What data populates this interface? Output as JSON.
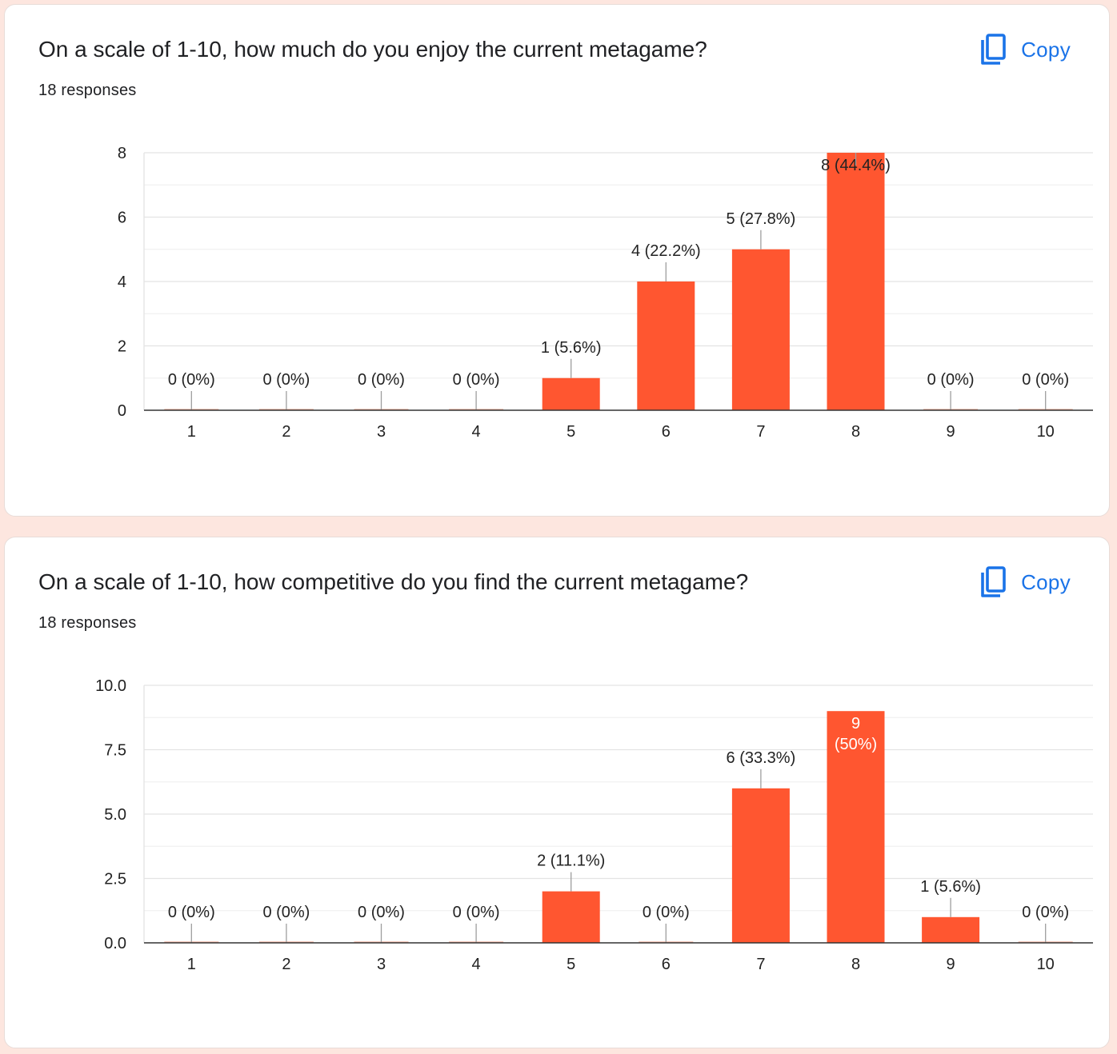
{
  "colors": {
    "bar": "#ff5630",
    "accent": "#1a73e8",
    "page_background": "#fde6df"
  },
  "copy_icon": "copy-icon",
  "cards": [
    {
      "question": "On a scale of 1-10, how much do you enjoy the current metagame?",
      "responses": "18 responses",
      "copy_label": "Copy"
    },
    {
      "question": "On a scale of 1-10, how competitive do you find the current metagame?",
      "responses": "18 responses",
      "copy_label": "Copy"
    }
  ],
  "chart_data": [
    {
      "type": "bar",
      "title": "On a scale of 1-10, how much do you enjoy the current metagame?",
      "categories": [
        "1",
        "2",
        "3",
        "4",
        "5",
        "6",
        "7",
        "8",
        "9",
        "10"
      ],
      "values": [
        0,
        0,
        0,
        0,
        1,
        4,
        5,
        8,
        0,
        0
      ],
      "data_labels": [
        "0 (0%)",
        "0 (0%)",
        "0 (0%)",
        "0 (0%)",
        "1 (5.6%)",
        "4 (22.2%)",
        "5 (27.8%)",
        "8 (44.4%)",
        "0 (0%)",
        "0 (0%)"
      ],
      "ylim": [
        0,
        8
      ],
      "yticks": [
        "0",
        "2",
        "4",
        "6",
        "8"
      ],
      "grid": true,
      "xlabel": "",
      "ylabel": ""
    },
    {
      "type": "bar",
      "title": "On a scale of 1-10, how competitive do you find the current metagame?",
      "categories": [
        "1",
        "2",
        "3",
        "4",
        "5",
        "6",
        "7",
        "8",
        "9",
        "10"
      ],
      "values": [
        0,
        0,
        0,
        0,
        2,
        0,
        6,
        9,
        1,
        0
      ],
      "data_labels": [
        "0 (0%)",
        "0 (0%)",
        "0 (0%)",
        "0 (0%)",
        "2 (11.1%)",
        "0 (0%)",
        "6 (33.3%)",
        "9\n(50%)",
        "1 (5.6%)",
        "0 (0%)"
      ],
      "ylim": [
        0,
        10
      ],
      "yticks": [
        "0.0",
        "2.5",
        "5.0",
        "7.5",
        "10.0"
      ],
      "grid": true,
      "xlabel": "",
      "ylabel": ""
    }
  ]
}
